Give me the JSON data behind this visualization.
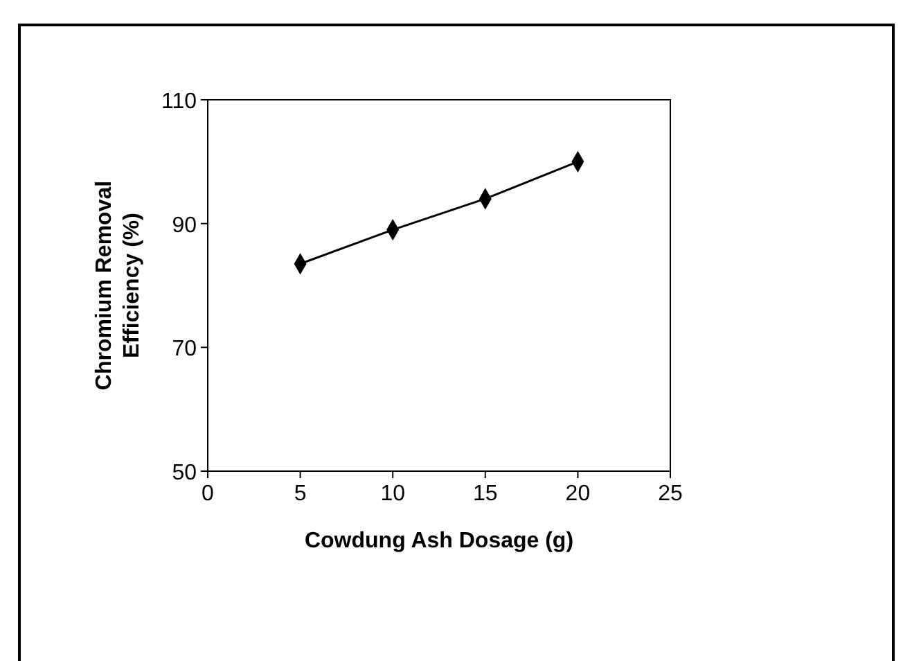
{
  "chart_data": {
    "type": "line",
    "xlabel": "Cowdung Ash Dosage (g)",
    "ylabel": "Chromium Removal Efficiency (%)",
    "x": [
      5,
      10,
      15,
      20
    ],
    "series": [
      {
        "color": "#000000",
        "values": [
          83.5,
          89,
          94,
          100
        ]
      }
    ],
    "xlim": [
      0,
      25
    ],
    "xticks": [
      0,
      5,
      10,
      15,
      20,
      25
    ],
    "ylim": [
      50,
      110
    ],
    "yticks": [
      50,
      70,
      90,
      110
    ],
    "grid": false,
    "marker": "diamond",
    "line_style": "solid"
  }
}
